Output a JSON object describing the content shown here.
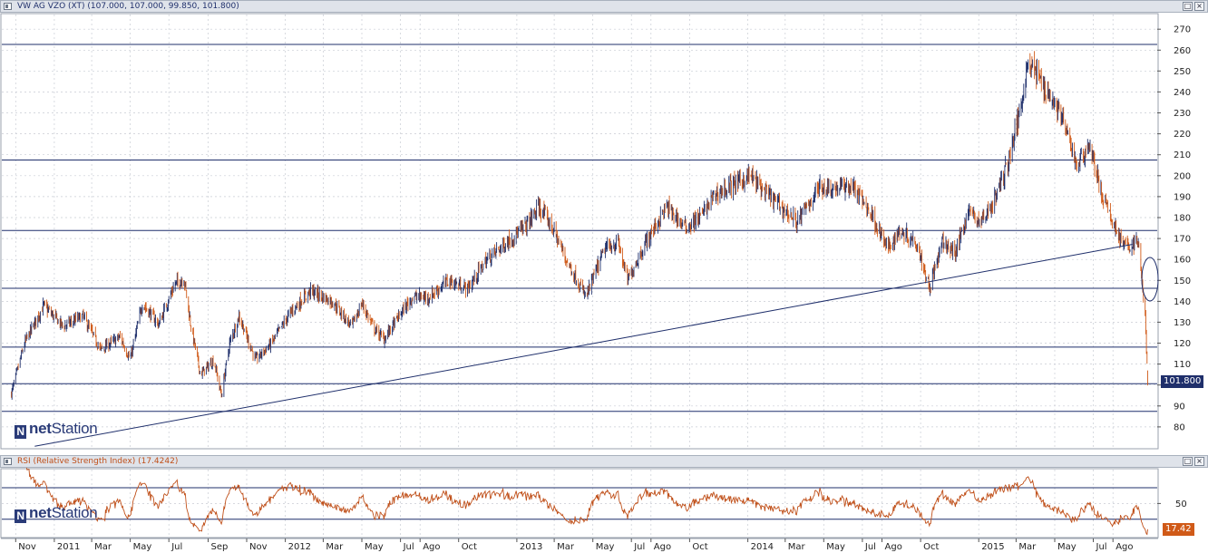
{
  "main_panel": {
    "title": "VW AG VZO (XT) (107.000, 107.000, 99.850, 101.800)",
    "last_price_label": "101.800",
    "logo": {
      "prefix": "net",
      "suffix": "Station"
    }
  },
  "rsi_panel": {
    "title": "RSI (Relative Strength Index) (17.4242)",
    "last_value_label": "17.42",
    "logo": {
      "prefix": "net",
      "suffix": "Station"
    }
  },
  "window_buttons": {
    "restore": "□",
    "close": "×"
  },
  "colors": {
    "up_bar": "#1f2f6b",
    "down_bar": "#d05a18",
    "rsi_line": "#c0501a",
    "grid": "#c8ccd4",
    "hline": "#1f2f6b",
    "panel_bg": "#ffffff"
  },
  "chart_data": [
    {
      "type": "ohlc",
      "title": "VW AG VZO (XT) (107.000, 107.000, 99.850, 101.800)",
      "ylim": [
        70,
        277
      ],
      "y_ticks": [
        80,
        90,
        100,
        110,
        120,
        130,
        140,
        150,
        160,
        170,
        180,
        190,
        200,
        210,
        220,
        230,
        240,
        250,
        260,
        270
      ],
      "last_price": 101.8,
      "horizontal_lines": [
        262.7,
        207.5,
        173.8,
        146.2,
        118.1,
        100.6,
        87.4
      ],
      "trend_line": {
        "from": {
          "date": "2010-12",
          "value": 70.8
        },
        "to": {
          "date": "2015-09",
          "value": 167.2
        }
      },
      "path_points": [
        [
          "2010-10-25",
          96
        ],
        [
          "2010-11-15",
          120
        ],
        [
          "2010-12-15",
          138
        ],
        [
          "2011-01-15",
          128
        ],
        [
          "2011-02-15",
          133
        ],
        [
          "2011-03-15",
          117
        ],
        [
          "2011-04-15",
          123
        ],
        [
          "2011-05-01",
          112
        ],
        [
          "2011-05-20",
          139
        ],
        [
          "2011-06-15",
          129
        ],
        [
          "2011-07-10",
          148
        ],
        [
          "2011-07-25",
          151
        ],
        [
          "2011-08-05",
          128
        ],
        [
          "2011-08-20",
          105
        ],
        [
          "2011-09-10",
          112
        ],
        [
          "2011-09-22",
          95
        ],
        [
          "2011-10-05",
          120
        ],
        [
          "2011-10-20",
          133
        ],
        [
          "2011-11-15",
          112
        ],
        [
          "2011-12-10",
          120
        ],
        [
          "2012-01-10",
          135
        ],
        [
          "2012-02-10",
          145
        ],
        [
          "2012-03-15",
          140
        ],
        [
          "2012-04-15",
          128
        ],
        [
          "2012-05-01",
          139
        ],
        [
          "2012-05-20",
          127
        ],
        [
          "2012-06-05",
          122
        ],
        [
          "2012-07-01",
          134
        ],
        [
          "2012-07-20",
          142
        ],
        [
          "2012-08-15",
          142
        ],
        [
          "2012-09-15",
          150
        ],
        [
          "2012-10-15",
          146
        ],
        [
          "2012-11-15",
          160
        ],
        [
          "2012-12-15",
          168
        ],
        [
          "2013-01-15",
          176
        ],
        [
          "2013-02-05",
          185
        ],
        [
          "2013-02-25",
          176
        ],
        [
          "2013-03-20",
          160
        ],
        [
          "2013-04-20",
          142
        ],
        [
          "2013-05-20",
          165
        ],
        [
          "2013-06-10",
          168
        ],
        [
          "2013-06-25",
          150
        ],
        [
          "2013-07-20",
          166
        ],
        [
          "2013-08-25",
          185
        ],
        [
          "2013-09-10",
          180
        ],
        [
          "2013-09-25",
          175
        ],
        [
          "2013-10-20",
          181
        ],
        [
          "2013-11-10",
          191
        ],
        [
          "2013-12-05",
          195
        ],
        [
          "2014-01-05",
          200
        ],
        [
          "2014-01-25",
          193
        ],
        [
          "2014-02-20",
          186
        ],
        [
          "2014-03-20",
          178
        ],
        [
          "2014-04-25",
          195
        ],
        [
          "2014-05-15",
          194
        ],
        [
          "2014-06-15",
          195
        ],
        [
          "2014-07-15",
          182
        ],
        [
          "2014-08-10",
          165
        ],
        [
          "2014-08-30",
          174
        ],
        [
          "2014-09-25",
          168
        ],
        [
          "2014-10-15",
          147
        ],
        [
          "2014-11-05",
          168
        ],
        [
          "2014-11-25",
          163
        ],
        [
          "2014-12-15",
          183
        ],
        [
          "2015-01-05",
          178
        ],
        [
          "2015-01-25",
          188
        ],
        [
          "2015-02-15",
          205
        ],
        [
          "2015-03-05",
          228
        ],
        [
          "2015-03-20",
          255
        ],
        [
          "2015-04-10",
          245
        ],
        [
          "2015-05-10",
          230
        ],
        [
          "2015-06-05",
          205
        ],
        [
          "2015-06-25",
          215
        ],
        [
          "2015-07-15",
          190
        ],
        [
          "2015-08-05",
          175
        ],
        [
          "2015-08-20",
          166
        ],
        [
          "2015-09-10",
          168
        ],
        [
          "2015-09-21",
          133
        ],
        [
          "2015-09-25",
          101.8
        ]
      ],
      "x_axis": {
        "type": "date",
        "range": [
          "2010-10-10",
          "2015-10-10"
        ]
      }
    },
    {
      "type": "line",
      "title": "RSI (Relative Strength Index) (17.4242)",
      "ylim": [
        8,
        93
      ],
      "y_ticks": [
        50
      ],
      "horizontal_lines": [
        70,
        30
      ],
      "last_value": 17.42,
      "x_axis": {
        "type": "date",
        "range": [
          "2010-10-10",
          "2015-10-10"
        ],
        "tick_labels": [
          [
            "2010-11-01",
            "Nov"
          ],
          [
            "2011-01-01",
            "2011"
          ],
          [
            "2011-03-01",
            "Mar"
          ],
          [
            "2011-05-01",
            "May"
          ],
          [
            "2011-07-01",
            "Jul"
          ],
          [
            "2011-09-01",
            "Sep"
          ],
          [
            "2011-11-01",
            "Nov"
          ],
          [
            "2012-01-01",
            "2012"
          ],
          [
            "2012-03-01",
            "Mar"
          ],
          [
            "2012-05-01",
            "May"
          ],
          [
            "2012-07-01",
            "Jul"
          ],
          [
            "2012-08-01",
            "Ago"
          ],
          [
            "2012-10-01",
            "Oct"
          ],
          [
            "2013-01-01",
            "2013"
          ],
          [
            "2013-03-01",
            "Mar"
          ],
          [
            "2013-05-01",
            "May"
          ],
          [
            "2013-07-01",
            "Jul"
          ],
          [
            "2013-08-01",
            "Ago"
          ],
          [
            "2013-10-01",
            "Oct"
          ],
          [
            "2014-01-01",
            "2014"
          ],
          [
            "2014-03-01",
            "Mar"
          ],
          [
            "2014-05-01",
            "May"
          ],
          [
            "2014-07-01",
            "Jul"
          ],
          [
            "2014-08-01",
            "Ago"
          ],
          [
            "2014-10-01",
            "Oct"
          ],
          [
            "2015-01-01",
            "2015"
          ],
          [
            "2015-03-01",
            "Mar"
          ],
          [
            "2015-05-01",
            "May"
          ],
          [
            "2015-07-01",
            "Jul"
          ],
          [
            "2015-08-01",
            "Ago"
          ]
        ]
      }
    }
  ]
}
